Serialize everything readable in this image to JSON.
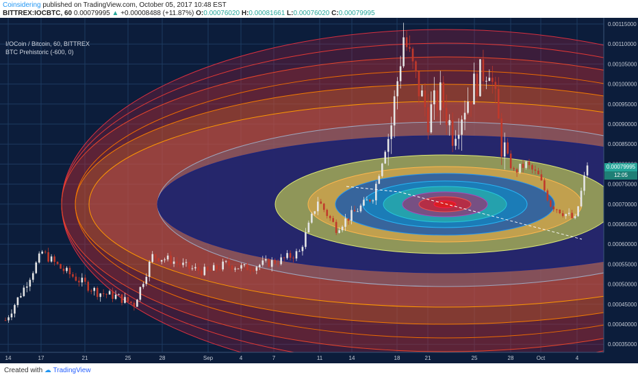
{
  "header": {
    "author": "Coinsidering",
    "published_text": "published on TradingView.com, October 05, 2017 10:48 EST",
    "symbol_line": "BITTREX:IOCBTC, 60",
    "last_price": "0.00079995",
    "change": "+0.00008488 (+11.87%)",
    "ohlc": {
      "o_label": "O:",
      "o": "0.00076020",
      "h_label": "H:",
      "h": "0.00081661",
      "l_label": "L:",
      "l": "0.00076020",
      "c_label": "C:",
      "c": "0.00079995"
    }
  },
  "legend": {
    "instrument": "I/OCoin / Bitcoin, 60, BITTREX",
    "indicator": "BTC Prehistoric (-600, 0)"
  },
  "price_tags": {
    "current": "0.00079995",
    "countdown": "12:05"
  },
  "footer": {
    "created_with": "Created with",
    "brand": "TradingView"
  },
  "colors": {
    "background": "#0c1d3b",
    "grid": "#1d3a60",
    "candle_up": "#e6e6e6",
    "candle_down": "#c0392b",
    "current_tag": "#26a69a"
  },
  "chart_data": {
    "type": "candlestick",
    "y_axis_ticks": [
      "0.00115000",
      "0.00110000",
      "0.00105000",
      "0.00100000",
      "0.00095000",
      "0.00090000",
      "0.00085000",
      "0.00080000",
      "0.00075000",
      "0.00070000",
      "0.00065000",
      "0.00060000",
      "0.00055000",
      "0.00050000",
      "0.00045000",
      "0.00040000",
      "0.00035000"
    ],
    "x_axis_ticks": [
      "14",
      "17",
      "21",
      "25",
      "28",
      "Sep",
      "4",
      "7",
      "11",
      "14",
      "18",
      "21",
      "25",
      "28",
      "Oct",
      "4"
    ],
    "ylim": [
      0.00035,
      0.00117
    ],
    "approx_close_path": [
      [
        0,
        0.00041
      ],
      [
        3,
        0.00049
      ],
      [
        6,
        0.00058
      ],
      [
        9,
        0.00054
      ],
      [
        12,
        0.00051
      ],
      [
        15,
        0.00048
      ],
      [
        18,
        0.00047
      ],
      [
        21,
        0.00045
      ],
      [
        24,
        0.00057
      ],
      [
        27,
        0.00056
      ],
      [
        30,
        0.00054
      ],
      [
        33,
        0.00053
      ],
      [
        36,
        0.00055
      ],
      [
        39,
        0.00054
      ],
      [
        42,
        0.00055
      ],
      [
        45,
        0.00056
      ],
      [
        48,
        0.00058
      ],
      [
        51,
        0.00071
      ],
      [
        54,
        0.00064
      ],
      [
        57,
        0.00068
      ],
      [
        60,
        0.00072
      ],
      [
        63,
        0.0009
      ],
      [
        65,
        0.00112
      ],
      [
        67,
        0.00101
      ],
      [
        69,
        0.00092
      ],
      [
        71,
        0.00097
      ],
      [
        73,
        0.00088
      ],
      [
        75,
        0.00095
      ],
      [
        77,
        0.00101
      ],
      [
        79,
        0.00105
      ],
      [
        81,
        0.00085
      ],
      [
        83,
        0.00078
      ],
      [
        85,
        0.0008
      ],
      [
        87,
        0.00077
      ],
      [
        89,
        0.0007
      ],
      [
        91,
        0.00068
      ],
      [
        93,
        0.00066
      ],
      [
        95,
        0.0008
      ]
    ],
    "annotation": "concentric elliptical rings drawn on chart"
  }
}
